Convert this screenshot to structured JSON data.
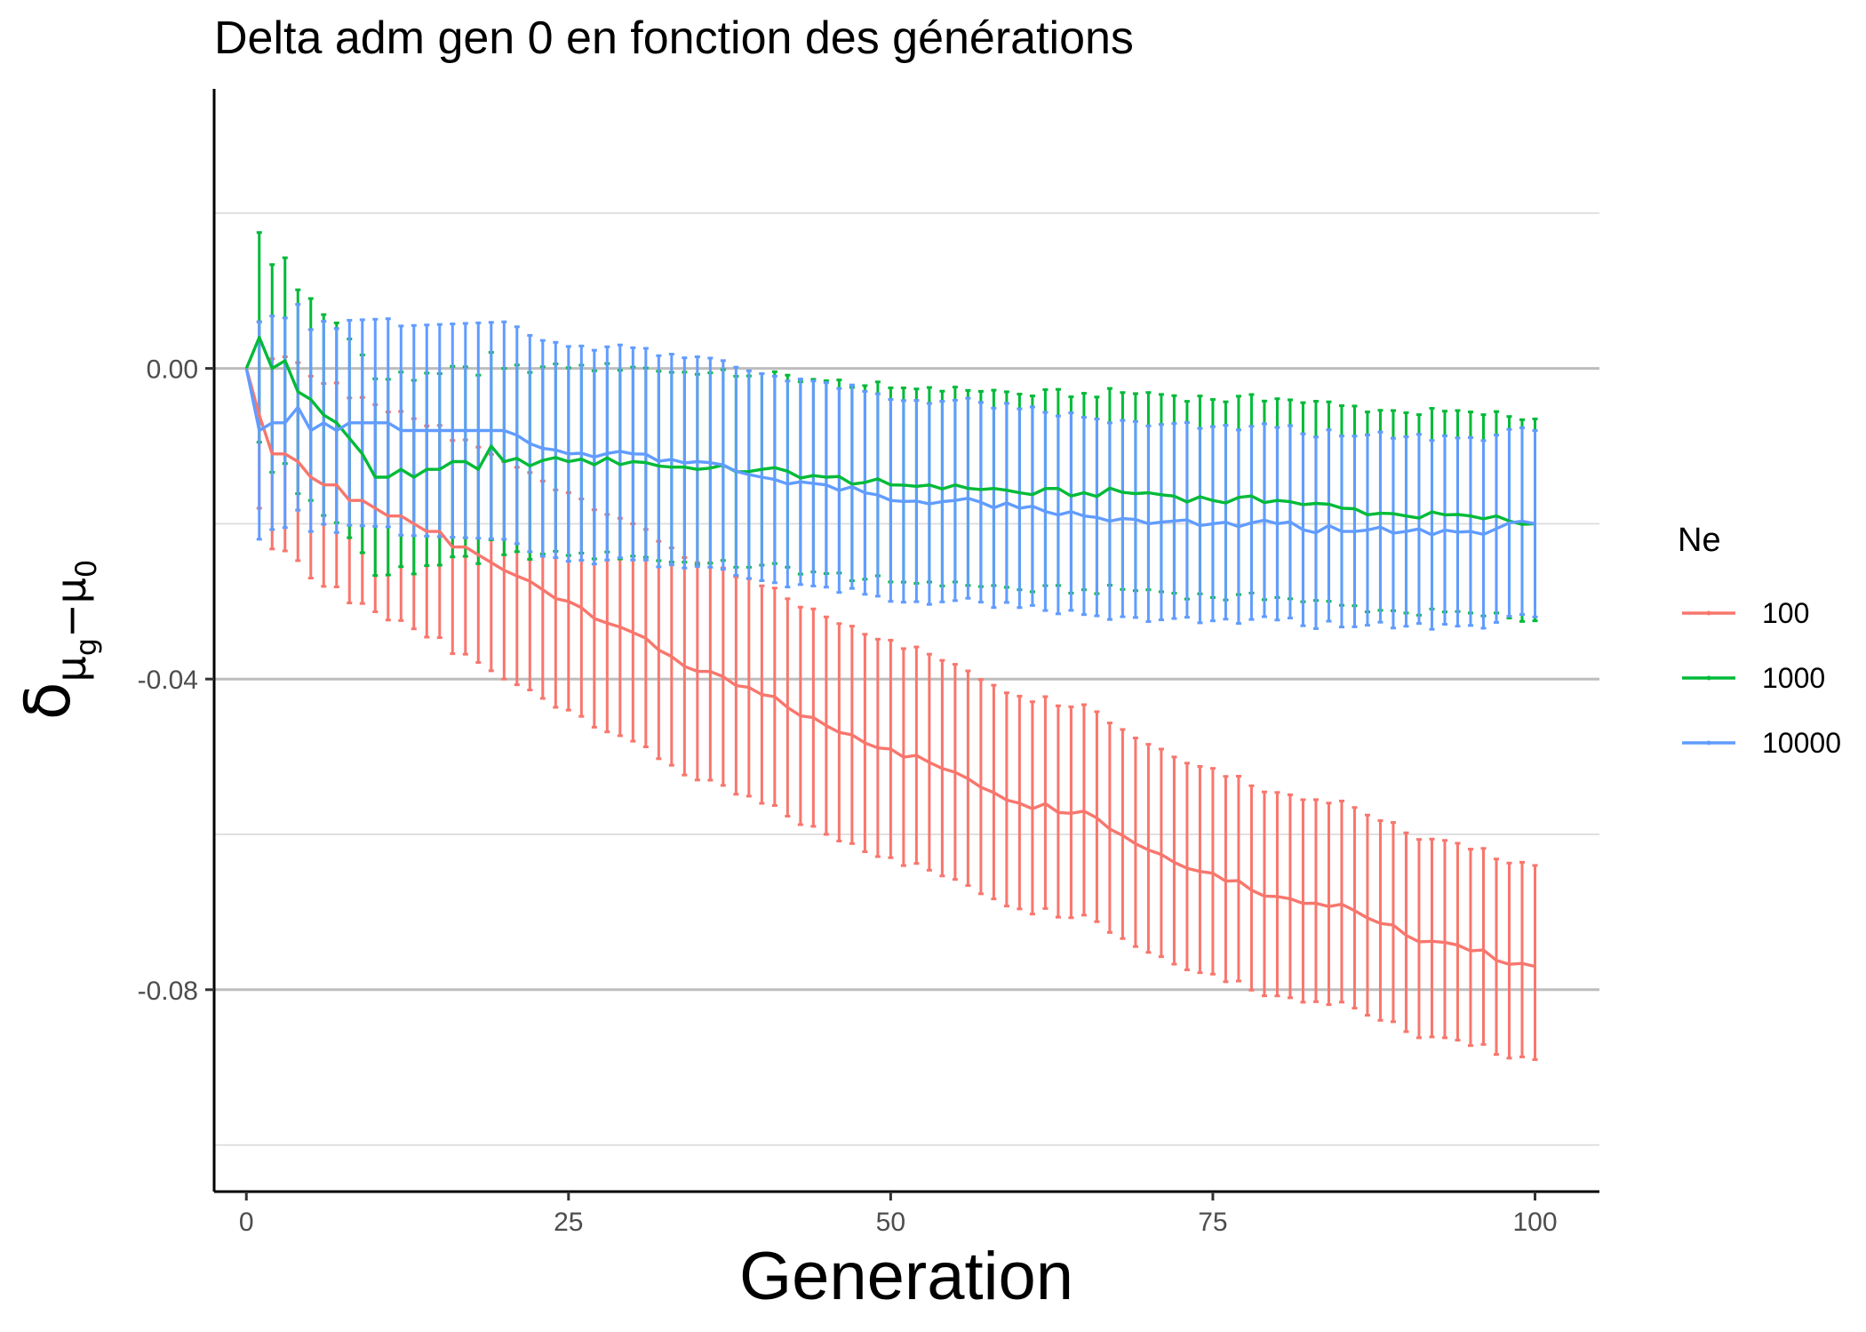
{
  "chart_data": {
    "type": "line",
    "title": "Delta adm gen 0 en fonction des générations",
    "xlabel": "Generation",
    "ylabel": {
      "main": "δ",
      "sub1": "μ",
      "sub1sub": "g",
      "sep": "−",
      "sub2": "μ",
      "sub2sub": "0"
    },
    "xlim": [
      -2.5,
      105
    ],
    "ylim": [
      -0.106,
      0.036
    ],
    "x_ticks": [
      0,
      25,
      50,
      75,
      100
    ],
    "x_tick_labels": [
      "0",
      "25",
      "50",
      "75",
      "100"
    ],
    "y_ticks": [
      0.0,
      -0.04,
      -0.08
    ],
    "y_tick_labels": [
      "0.00",
      "-0.04",
      "-0.08"
    ],
    "y_minor_gridlines": [
      0.02,
      -0.02,
      -0.06,
      -0.1
    ],
    "grid": "horizontal",
    "legend": {
      "title": "Ne",
      "position": "right"
    },
    "series": [
      {
        "name": "100",
        "color": "#F8766D",
        "anchors": [
          [
            0,
            0.0
          ],
          [
            1,
            -0.006
          ],
          [
            2,
            -0.011
          ],
          [
            3,
            -0.011
          ],
          [
            4,
            -0.012
          ],
          [
            5,
            -0.014
          ],
          [
            6,
            -0.015
          ],
          [
            7,
            -0.015
          ],
          [
            8,
            -0.017
          ],
          [
            9,
            -0.017
          ],
          [
            10,
            -0.018
          ],
          [
            11,
            -0.019
          ],
          [
            12,
            -0.019
          ],
          [
            13,
            -0.02
          ],
          [
            14,
            -0.021
          ],
          [
            15,
            -0.021
          ],
          [
            16,
            -0.023
          ],
          [
            17,
            -0.023
          ],
          [
            18,
            -0.024
          ],
          [
            20,
            -0.026
          ],
          [
            25,
            -0.03
          ],
          [
            30,
            -0.034
          ],
          [
            35,
            -0.039
          ],
          [
            40,
            -0.042
          ],
          [
            45,
            -0.046
          ],
          [
            50,
            -0.049
          ],
          [
            55,
            -0.052
          ],
          [
            60,
            -0.056
          ],
          [
            65,
            -0.057
          ],
          [
            70,
            -0.062
          ],
          [
            75,
            -0.065
          ],
          [
            80,
            -0.068
          ],
          [
            85,
            -0.069
          ],
          [
            90,
            -0.073
          ],
          [
            95,
            -0.075
          ],
          [
            100,
            -0.077
          ]
        ],
        "err_lower_offset": [
          [
            0,
            0.0
          ],
          [
            1,
            0.012
          ],
          [
            5,
            0.013
          ],
          [
            20,
            0.014
          ],
          [
            50,
            0.014
          ],
          [
            100,
            0.012
          ]
        ],
        "err_upper_offset": [
          [
            0,
            0.0
          ],
          [
            1,
            0.012
          ],
          [
            5,
            0.013
          ],
          [
            20,
            0.014
          ],
          [
            50,
            0.014
          ],
          [
            100,
            0.013
          ]
        ]
      },
      {
        "name": "1000",
        "color": "#00BA38",
        "anchors": [
          [
            0,
            0.0
          ],
          [
            1,
            0.004
          ],
          [
            2,
            0.0
          ],
          [
            3,
            0.001
          ],
          [
            4,
            -0.003
          ],
          [
            5,
            -0.004
          ],
          [
            6,
            -0.006
          ],
          [
            7,
            -0.007
          ],
          [
            8,
            -0.009
          ],
          [
            9,
            -0.011
          ],
          [
            10,
            -0.014
          ],
          [
            11,
            -0.014
          ],
          [
            12,
            -0.013
          ],
          [
            13,
            -0.014
          ],
          [
            14,
            -0.013
          ],
          [
            15,
            -0.013
          ],
          [
            16,
            -0.012
          ],
          [
            17,
            -0.012
          ],
          [
            18,
            -0.013
          ],
          [
            19,
            -0.01
          ],
          [
            20,
            -0.012
          ],
          [
            25,
            -0.012
          ],
          [
            30,
            -0.012
          ],
          [
            35,
            -0.013
          ],
          [
            40,
            -0.013
          ],
          [
            45,
            -0.014
          ],
          [
            50,
            -0.015
          ],
          [
            55,
            -0.015
          ],
          [
            60,
            -0.016
          ],
          [
            65,
            -0.016
          ],
          [
            70,
            -0.016
          ],
          [
            75,
            -0.017
          ],
          [
            80,
            -0.017
          ],
          [
            85,
            -0.018
          ],
          [
            90,
            -0.019
          ],
          [
            95,
            -0.019
          ],
          [
            100,
            -0.02
          ]
        ],
        "err_lower_offset": [
          [
            0,
            0.0
          ],
          [
            1,
            0.0135
          ],
          [
            5,
            0.013
          ],
          [
            20,
            0.012
          ],
          [
            50,
            0.0125
          ],
          [
            100,
            0.0125
          ]
        ],
        "err_upper_offset": [
          [
            0,
            0.0
          ],
          [
            1,
            0.0135
          ],
          [
            5,
            0.013
          ],
          [
            20,
            0.012
          ],
          [
            50,
            0.0125
          ],
          [
            100,
            0.0135
          ]
        ]
      },
      {
        "name": "10000",
        "color": "#619CFF",
        "anchors": [
          [
            0,
            0.0
          ],
          [
            1,
            -0.008
          ],
          [
            2,
            -0.007
          ],
          [
            3,
            -0.007
          ],
          [
            4,
            -0.005
          ],
          [
            5,
            -0.008
          ],
          [
            6,
            -0.007
          ],
          [
            7,
            -0.008
          ],
          [
            8,
            -0.007
          ],
          [
            9,
            -0.007
          ],
          [
            10,
            -0.007
          ],
          [
            11,
            -0.007
          ],
          [
            12,
            -0.008
          ],
          [
            13,
            -0.008
          ],
          [
            14,
            -0.008
          ],
          [
            15,
            -0.008
          ],
          [
            16,
            -0.008
          ],
          [
            17,
            -0.008
          ],
          [
            18,
            -0.008
          ],
          [
            20,
            -0.008
          ],
          [
            25,
            -0.011
          ],
          [
            30,
            -0.011
          ],
          [
            35,
            -0.012
          ],
          [
            40,
            -0.014
          ],
          [
            45,
            -0.015
          ],
          [
            50,
            -0.017
          ],
          [
            55,
            -0.017
          ],
          [
            60,
            -0.018
          ],
          [
            65,
            -0.019
          ],
          [
            70,
            -0.02
          ],
          [
            75,
            -0.02
          ],
          [
            80,
            -0.02
          ],
          [
            85,
            -0.021
          ],
          [
            90,
            -0.021
          ],
          [
            95,
            -0.021
          ],
          [
            100,
            -0.02
          ]
        ],
        "err_lower_offset": [
          [
            0,
            0.0
          ],
          [
            1,
            0.014
          ],
          [
            5,
            0.013
          ],
          [
            20,
            0.014
          ],
          [
            50,
            0.013
          ],
          [
            100,
            0.012
          ]
        ],
        "err_upper_offset": [
          [
            0,
            0.0
          ],
          [
            1,
            0.014
          ],
          [
            5,
            0.013
          ],
          [
            20,
            0.014
          ],
          [
            50,
            0.013
          ],
          [
            100,
            0.012
          ]
        ]
      }
    ]
  }
}
